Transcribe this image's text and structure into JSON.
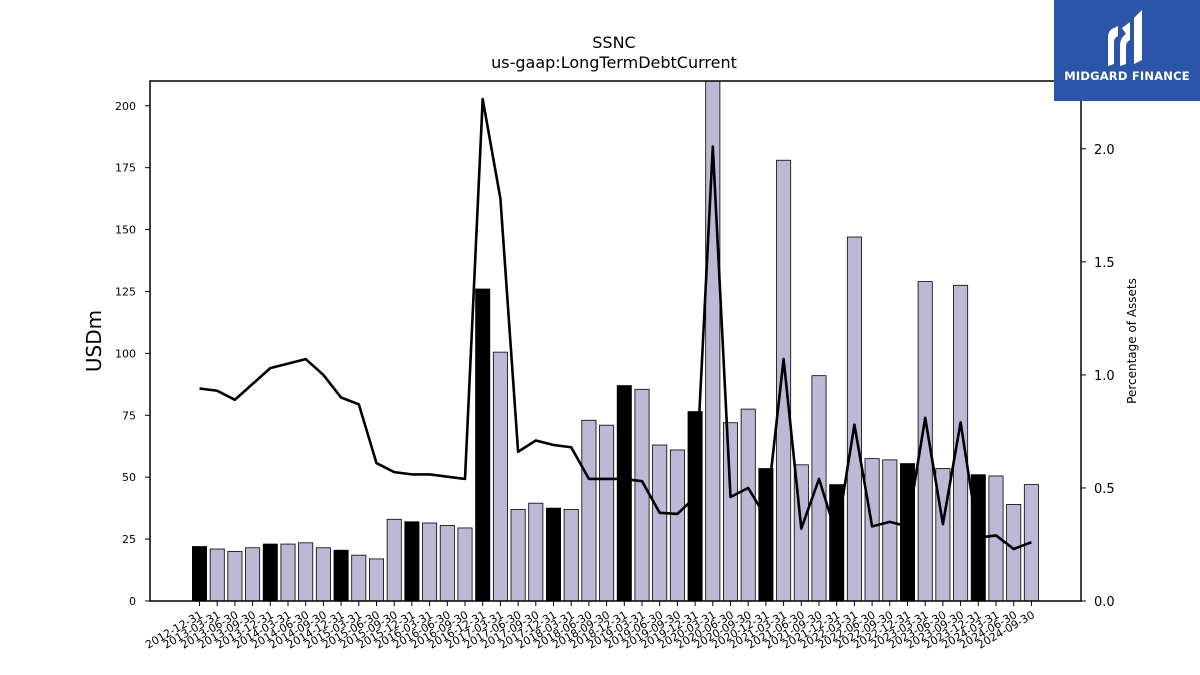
{
  "brand": {
    "name": "MIDGARD FINANCE",
    "bg_color": "#2b56a8"
  },
  "chart_data": {
    "type": "bar",
    "title": "SSNC",
    "subtitle": "us-gaap:LongTermDebtCurrent",
    "ylabel": "USDm",
    "y2label": "Percentage of Assets",
    "ylim": [
      0,
      210
    ],
    "y2lim": [
      0,
      2.3
    ],
    "yticks": [
      0,
      25,
      50,
      75,
      100,
      125,
      150,
      175,
      200
    ],
    "y2ticks": [
      "0.0",
      "0.5",
      "1.0",
      "1.5",
      "2.0"
    ],
    "bar_colors": {
      "annual": "#000000",
      "quarter": "#bcb8d6"
    },
    "line_color": "#000000",
    "categories": [
      "2012-12-31",
      "2013-03-31",
      "2013-06-30",
      "2013-09-30",
      "2013-12-31",
      "2014-03-31",
      "2014-06-30",
      "2014-09-30",
      "2014-12-31",
      "2015-03-31",
      "2015-06-30",
      "2015-09-30",
      "2015-12-31",
      "2016-03-31",
      "2016-06-30",
      "2016-09-30",
      "2016-12-31",
      "2017-03-31",
      "2017-06-30",
      "2017-09-30",
      "2017-12-31",
      "2018-03-31",
      "2018-06-30",
      "2018-09-30",
      "2018-12-31",
      "2019-03-31",
      "2019-06-30",
      "2019-09-30",
      "2019-12-31",
      "2020-03-31",
      "2020-06-30",
      "2020-09-30",
      "2020-12-31",
      "2021-03-31",
      "2021-06-30",
      "2021-09-30",
      "2021-12-31",
      "2022-03-31",
      "2022-06-30",
      "2022-09-30",
      "2022-12-31",
      "2023-03-31",
      "2023-06-30",
      "2023-09-30",
      "2023-12-31",
      "2024-03-31",
      "2024-06-30",
      "2024-09-30"
    ],
    "series": [
      {
        "kind": "bar",
        "values": [
          22,
          21,
          20,
          21.5,
          23,
          23,
          23.5,
          21.5,
          20.5,
          18.5,
          17,
          33,
          32,
          31.5,
          30.5,
          29.5,
          126,
          100.5,
          37,
          39.5,
          37.5,
          37,
          73,
          71,
          87,
          85.5,
          63,
          61,
          76.5,
          212,
          72,
          77.5,
          53.5,
          178,
          55,
          91,
          47,
          147,
          57.5,
          57,
          55.5,
          129,
          53.5,
          127.5,
          51,
          50.5,
          39,
          47
        ],
        "annual": [
          true,
          false,
          false,
          false,
          true,
          false,
          false,
          false,
          true,
          false,
          false,
          false,
          true,
          false,
          false,
          false,
          true,
          false,
          false,
          false,
          true,
          false,
          false,
          false,
          true,
          false,
          false,
          false,
          true,
          false,
          false,
          false,
          true,
          false,
          false,
          false,
          true,
          false,
          false,
          false,
          true,
          false,
          false,
          false,
          true,
          false,
          false,
          false
        ]
      },
      {
        "kind": "line",
        "axis": "right",
        "values": [
          0.94,
          0.93,
          0.89,
          0.96,
          1.03,
          1.05,
          1.07,
          1.0,
          0.9,
          0.87,
          0.61,
          0.57,
          0.56,
          0.56,
          0.55,
          0.54,
          2.22,
          1.78,
          0.66,
          0.71,
          0.69,
          0.68,
          0.54,
          0.54,
          0.54,
          0.53,
          0.39,
          0.385,
          0.46,
          2.01,
          0.46,
          0.5,
          0.37,
          1.07,
          0.32,
          0.54,
          0.29,
          0.78,
          0.33,
          0.35,
          0.33,
          0.81,
          0.34,
          0.79,
          0.28,
          0.29,
          0.23,
          0.26
        ]
      }
    ]
  }
}
